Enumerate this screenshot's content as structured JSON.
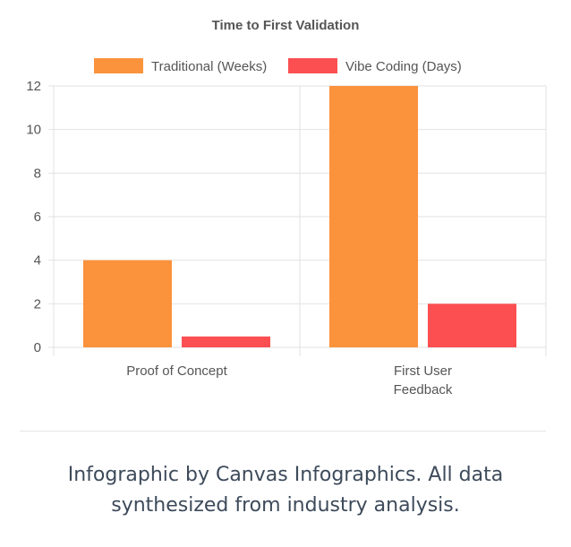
{
  "chart_data": {
    "type": "bar",
    "title": "Time to First Validation",
    "categories": [
      [
        "Proof of Concept"
      ],
      [
        "First User",
        "Feedback"
      ]
    ],
    "series": [
      {
        "name": "Traditional (Weeks)",
        "values": [
          4,
          12
        ],
        "color": "#fb923c"
      },
      {
        "name": "Vibe Coding (Days)",
        "values": [
          0.5,
          2
        ],
        "color": "#fb4f52"
      }
    ],
    "yticks": [
      "0",
      "2",
      "4",
      "6",
      "8",
      "10",
      "12"
    ],
    "ylim": [
      0,
      12
    ],
    "grid": true,
    "legend": "top-center",
    "xlabel": "",
    "ylabel": ""
  },
  "footer": {
    "line1": "Infographic by Canvas Infographics. All data",
    "line2": "synthesized from industry analysis."
  }
}
